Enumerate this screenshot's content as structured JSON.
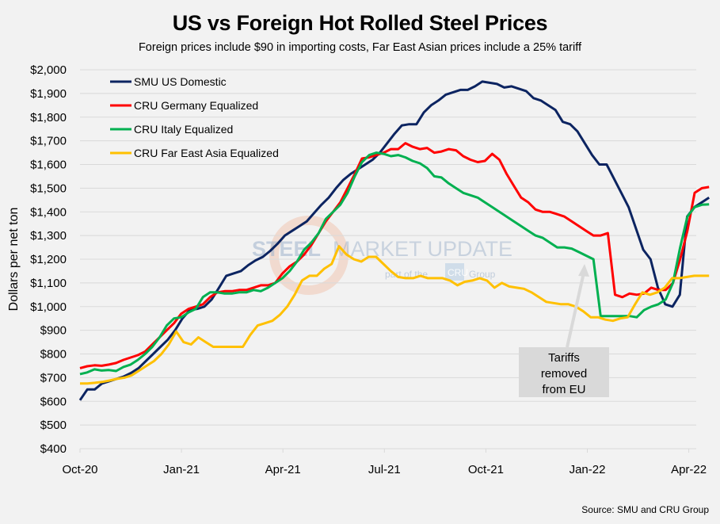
{
  "chart_data": {
    "type": "line",
    "title": "US vs Foreign Hot Rolled Steel Prices",
    "subtitle": "Foreign prices include $90 in importing costs, Far East Asian prices include a 25% tariff",
    "xlabel": "",
    "ylabel": "Dollars per net ton",
    "ylim": [
      400,
      2000
    ],
    "y_ticks": [
      400,
      500,
      600,
      700,
      800,
      900,
      1000,
      1100,
      1200,
      1300,
      1400,
      1500,
      1600,
      1700,
      1800,
      1900,
      2000
    ],
    "y_tick_labels": [
      "$400",
      "$500",
      "$600",
      "$700",
      "$800",
      "$900",
      "$1,000",
      "$1,100",
      "$1,200",
      "$1,300",
      "$1,400",
      "$1,500",
      "$1,600",
      "$1,700",
      "$1,800",
      "$1,900",
      "$2,000"
    ],
    "x_tick_labels": [
      "Oct-20",
      "Jan-21",
      "Apr-21",
      "Jul-21",
      "Oct-21",
      "Jan-22",
      "Apr-22"
    ],
    "x_unit": "weeks since start of Oct-20 (months are ~4.33 weeks)",
    "x_range_months": [
      0,
      18.6
    ],
    "grid": "horizontal",
    "legend_position": "top-left",
    "series": [
      {
        "name": "SMU US Domestic",
        "color": "#0c2461",
        "values": [
          605,
          650,
          650,
          675,
          685,
          695,
          705,
          720,
          740,
          770,
          800,
          830,
          860,
          900,
          950,
          985,
          990,
          1000,
          1030,
          1080,
          1130,
          1140,
          1150,
          1175,
          1195,
          1210,
          1235,
          1265,
          1300,
          1320,
          1340,
          1360,
          1395,
          1430,
          1460,
          1500,
          1535,
          1560,
          1580,
          1600,
          1620,
          1650,
          1690,
          1730,
          1765,
          1770,
          1770,
          1820,
          1850,
          1870,
          1895,
          1905,
          1915,
          1915,
          1930,
          1950,
          1945,
          1940,
          1925,
          1930,
          1920,
          1910,
          1880,
          1870,
          1850,
          1830,
          1780,
          1770,
          1740,
          1690,
          1640,
          1600,
          1600,
          1540,
          1480,
          1420,
          1330,
          1240,
          1200,
          1080,
          1010,
          1000,
          1050,
          1380,
          1420,
          1440,
          1460
        ]
      },
      {
        "name": "CRU Germany Equalized",
        "color": "#ff0000",
        "values": [
          740,
          748,
          752,
          750,
          755,
          762,
          775,
          785,
          795,
          810,
          840,
          870,
          900,
          930,
          970,
          990,
          1000,
          1010,
          1040,
          1060,
          1065,
          1065,
          1070,
          1070,
          1080,
          1090,
          1090,
          1100,
          1140,
          1170,
          1190,
          1220,
          1260,
          1310,
          1360,
          1400,
          1440,
          1500,
          1560,
          1625,
          1630,
          1640,
          1650,
          1665,
          1665,
          1690,
          1675,
          1665,
          1670,
          1650,
          1655,
          1665,
          1660,
          1635,
          1620,
          1610,
          1615,
          1645,
          1620,
          1560,
          1510,
          1460,
          1440,
          1410,
          1400,
          1400,
          1390,
          1380,
          1360,
          1340,
          1320,
          1300,
          1300,
          1310,
          1050,
          1040,
          1055,
          1050,
          1055,
          1080,
          1070,
          1070,
          1100,
          1200,
          1320,
          1480,
          1500,
          1505
        ]
      },
      {
        "name": "CRU Italy Equalized",
        "color": "#00b050",
        "values": [
          715,
          722,
          735,
          730,
          732,
          728,
          745,
          755,
          775,
          800,
          830,
          870,
          920,
          950,
          955,
          975,
          990,
          1040,
          1060,
          1060,
          1055,
          1055,
          1060,
          1060,
          1070,
          1065,
          1080,
          1100,
          1120,
          1150,
          1190,
          1240,
          1270,
          1310,
          1370,
          1400,
          1430,
          1480,
          1550,
          1610,
          1640,
          1650,
          1645,
          1635,
          1640,
          1630,
          1615,
          1605,
          1585,
          1550,
          1545,
          1520,
          1500,
          1480,
          1470,
          1460,
          1440,
          1420,
          1400,
          1380,
          1360,
          1340,
          1320,
          1300,
          1290,
          1270,
          1250,
          1250,
          1245,
          1230,
          1215,
          1200,
          960,
          960,
          960,
          960,
          960,
          955,
          985,
          1000,
          1010,
          1030,
          1100,
          1250,
          1380,
          1420,
          1430,
          1432
        ]
      },
      {
        "name": "CRU Far East Asia Equalized",
        "color": "#ffc000",
        "values": [
          675,
          675,
          678,
          682,
          688,
          695,
          700,
          710,
          730,
          750,
          770,
          800,
          840,
          895,
          850,
          840,
          870,
          850,
          830,
          830,
          830,
          830,
          830,
          880,
          920,
          930,
          940,
          965,
          1000,
          1050,
          1110,
          1130,
          1130,
          1160,
          1180,
          1255,
          1220,
          1200,
          1190,
          1210,
          1210,
          1180,
          1150,
          1125,
          1120,
          1120,
          1130,
          1120,
          1120,
          1120,
          1110,
          1090,
          1105,
          1110,
          1120,
          1110,
          1080,
          1100,
          1085,
          1080,
          1075,
          1060,
          1040,
          1020,
          1015,
          1010,
          1010,
          1000,
          980,
          955,
          955,
          945,
          940,
          950,
          955,
          1010,
          1060,
          1050,
          1060,
          1080,
          1120,
          1120,
          1125,
          1130,
          1130,
          1130
        ]
      }
    ],
    "annotations": [
      {
        "text": "Tariffs removed from EU",
        "lines": [
          "Tariffs",
          "removed",
          "from EU"
        ],
        "points_to": "Jan-22 drop in CRU Italy/Germany Equalized"
      }
    ],
    "watermark": {
      "line1_bold": "STEEL",
      "line1_light": "MARKET UPDATE",
      "line2": "part of the",
      "badge": "CRU",
      "line2_tail": "Group"
    },
    "source": "Source: SMU and CRU Group"
  }
}
